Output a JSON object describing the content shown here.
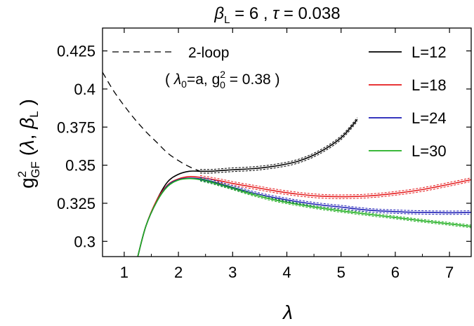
{
  "chart_data": {
    "type": "line",
    "title": "β_L = 6 , τ = 0.038",
    "title_parts": {
      "beta": "β",
      "beta_sub": "L",
      "beta_value": " = 6 , ",
      "tau": "τ",
      "tau_value": " = 0.038"
    },
    "xlabel": "λ",
    "ylabel": "g²_GF (λ, β_L)",
    "ylabel_parts": {
      "g": "g",
      "sup": "2",
      "sub": "GF",
      "args_open": " (",
      "lambda": "λ",
      "comma": ", ",
      "beta": "β",
      "beta_sub": "L",
      "args_close": " )"
    },
    "xlim": [
      0.6,
      7.4
    ],
    "ylim": [
      0.29,
      0.44
    ],
    "xticks": [
      1,
      2,
      3,
      4,
      5,
      6,
      7
    ],
    "yticks": [
      0.3,
      0.325,
      0.35,
      0.375,
      0.4,
      0.425
    ],
    "ytick_labels": [
      "0.3",
      "0.325",
      "0.35",
      "0.375",
      "0.4",
      "0.425"
    ],
    "grid": false,
    "legend_position": "top-right",
    "annotation": {
      "label": "2-loop",
      "params_open": "( ",
      "lambda": "λ",
      "lambda_sub": "0",
      "lambda_val": "=a,  ",
      "g": "g",
      "g_sup": "2",
      "g_sub": "0",
      "g_val": " = 0.38 )"
    },
    "two_loop": {
      "name": "2-loop",
      "color": "#000000",
      "dashed": true,
      "x": [
        0.6,
        0.8,
        1.0,
        1.2,
        1.4,
        1.6,
        1.8,
        2.0,
        2.2,
        2.4
      ],
      "y": [
        0.411,
        0.399,
        0.389,
        0.38,
        0.372,
        0.365,
        0.358,
        0.353,
        0.349,
        0.346
      ]
    },
    "series": [
      {
        "name": "L=12",
        "color": "#000000",
        "band": 0.0012,
        "x": [
          1.25,
          1.4,
          1.6,
          1.8,
          2.0,
          2.2,
          2.4,
          2.6,
          2.8,
          3.0,
          3.4,
          3.8,
          4.2,
          4.6,
          5.0,
          5.3
        ],
        "y": [
          0.29,
          0.31,
          0.327,
          0.339,
          0.344,
          0.346,
          0.346,
          0.346,
          0.3465,
          0.347,
          0.3478,
          0.3495,
          0.3525,
          0.3585,
          0.368,
          0.38
        ]
      },
      {
        "name": "L=18",
        "color": "#e41a1c",
        "band": 0.0012,
        "x": [
          1.25,
          1.4,
          1.6,
          1.8,
          2.0,
          2.2,
          2.4,
          2.6,
          2.8,
          3.0,
          3.4,
          3.8,
          4.2,
          4.6,
          5.0,
          5.5,
          6.0,
          6.5,
          7.0,
          7.4
        ],
        "y": [
          0.29,
          0.31,
          0.327,
          0.337,
          0.341,
          0.3425,
          0.342,
          0.3408,
          0.3395,
          0.338,
          0.3355,
          0.333,
          0.331,
          0.3297,
          0.3293,
          0.3298,
          0.3315,
          0.334,
          0.3375,
          0.3405
        ]
      },
      {
        "name": "L=24",
        "color": "#1a1ab4",
        "band": 0.0011,
        "x": [
          1.25,
          1.4,
          1.6,
          1.8,
          2.0,
          2.2,
          2.4,
          2.6,
          2.8,
          3.0,
          3.4,
          3.8,
          4.2,
          4.6,
          5.0,
          5.5,
          6.0,
          6.5,
          7.0,
          7.4
        ],
        "y": [
          0.29,
          0.31,
          0.326,
          0.3365,
          0.3405,
          0.3415,
          0.341,
          0.3395,
          0.3375,
          0.3355,
          0.3315,
          0.3285,
          0.326,
          0.324,
          0.3225,
          0.3205,
          0.3195,
          0.319,
          0.3188,
          0.319
        ]
      },
      {
        "name": "L=30",
        "color": "#1fae1f",
        "band": 0.0009,
        "x": [
          1.25,
          1.4,
          1.6,
          1.8,
          2.0,
          2.2,
          2.4,
          2.6,
          2.8,
          3.0,
          3.4,
          3.8,
          4.2,
          4.6,
          5.0,
          5.5,
          6.0,
          6.5,
          7.0,
          7.4
        ],
        "y": [
          0.29,
          0.31,
          0.326,
          0.336,
          0.3402,
          0.3412,
          0.3405,
          0.3388,
          0.3368,
          0.3348,
          0.3305,
          0.327,
          0.3243,
          0.322,
          0.32,
          0.3178,
          0.3157,
          0.3135,
          0.3115,
          0.3098
        ]
      }
    ]
  }
}
